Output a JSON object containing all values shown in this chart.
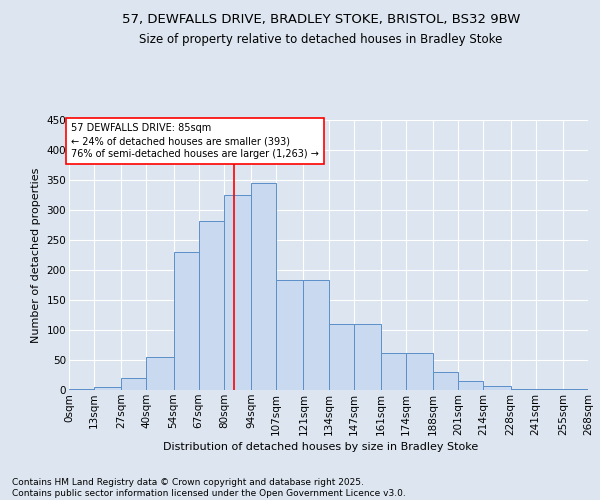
{
  "title1": "57, DEWFALLS DRIVE, BRADLEY STOKE, BRISTOL, BS32 9BW",
  "title2": "Size of property relative to detached houses in Bradley Stoke",
  "xlabel": "Distribution of detached houses by size in Bradley Stoke",
  "ylabel": "Number of detached properties",
  "footnote": "Contains HM Land Registry data © Crown copyright and database right 2025.\nContains public sector information licensed under the Open Government Licence v3.0.",
  "bins": [
    0,
    13,
    27,
    40,
    54,
    67,
    80,
    94,
    107,
    121,
    134,
    147,
    161,
    174,
    188,
    201,
    214,
    228,
    241,
    255,
    268
  ],
  "bin_labels": [
    "0sqm",
    "13sqm",
    "27sqm",
    "40sqm",
    "54sqm",
    "67sqm",
    "80sqm",
    "94sqm",
    "107sqm",
    "121sqm",
    "134sqm",
    "147sqm",
    "161sqm",
    "174sqm",
    "188sqm",
    "201sqm",
    "214sqm",
    "228sqm",
    "241sqm",
    "255sqm",
    "268sqm"
  ],
  "counts": [
    2,
    5,
    20,
    55,
    230,
    282,
    325,
    345,
    183,
    183,
    110,
    110,
    62,
    62,
    30,
    15,
    7,
    2,
    2,
    1
  ],
  "bar_color": "#c9d9f0",
  "bar_edge_color": "#5b8fc9",
  "vline_x": 85,
  "vline_color": "red",
  "annotation_text": "57 DEWFALLS DRIVE: 85sqm\n← 24% of detached houses are smaller (393)\n76% of semi-detached houses are larger (1,263) →",
  "annotation_box_color": "white",
  "annotation_box_edge": "red",
  "background_color": "#dde6f0",
  "plot_bg_color": "#dde6f0",
  "ylim": [
    0,
    450
  ],
  "yticks": [
    0,
    50,
    100,
    150,
    200,
    250,
    300,
    350,
    400,
    450
  ],
  "title1_fontsize": 9.5,
  "title2_fontsize": 8.5,
  "axis_fontsize": 7.5,
  "ylabel_fontsize": 8,
  "xlabel_fontsize": 8,
  "footnote_fontsize": 6.5,
  "annot_fontsize": 7
}
